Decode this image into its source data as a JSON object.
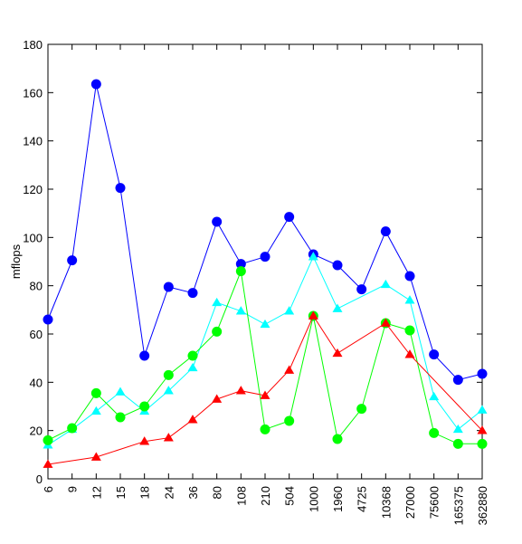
{
  "chart_data": {
    "type": "line",
    "title": "",
    "xlabel": "",
    "ylabel": "mflops",
    "ylim": [
      0,
      180
    ],
    "yticks": [
      0,
      20,
      40,
      60,
      80,
      100,
      120,
      140,
      160,
      180
    ],
    "categories": [
      "6",
      "9",
      "12",
      "15",
      "18",
      "24",
      "36",
      "80",
      "108",
      "210",
      "504",
      "1000",
      "1960",
      "4725",
      "10368",
      "27000",
      "75600",
      "165375",
      "362880"
    ],
    "grid": false,
    "legend": "none",
    "series": [
      {
        "color": "#0000ff",
        "marker": "circle",
        "values": [
          66,
          90.5,
          163.5,
          120.5,
          51,
          79.5,
          77,
          106.5,
          89,
          92,
          108.5,
          93,
          88.5,
          78.5,
          102.5,
          84,
          51.5,
          41,
          43.5
        ]
      },
      {
        "color": "#00ffff",
        "marker": "triangle",
        "values": [
          14,
          20.5,
          28,
          36,
          28,
          36.5,
          46,
          73,
          69.5,
          64,
          69.5,
          92,
          70.5,
          null,
          80.5,
          74,
          34,
          20.5,
          28.5
        ]
      },
      {
        "color": "#00ff00",
        "marker": "circle",
        "values": [
          16,
          21,
          35.5,
          25.5,
          30,
          43,
          51,
          61,
          86,
          20.5,
          24,
          67.5,
          16.5,
          29,
          64.5,
          61.5,
          19,
          14.5,
          14.5
        ]
      },
      {
        "color": "#ff0000",
        "marker": "triangle",
        "values": [
          6,
          null,
          9,
          null,
          15.5,
          17,
          24.5,
          33,
          36.5,
          34.5,
          45,
          67.5,
          52,
          null,
          64.5,
          51.5,
          null,
          null,
          20
        ]
      }
    ]
  }
}
